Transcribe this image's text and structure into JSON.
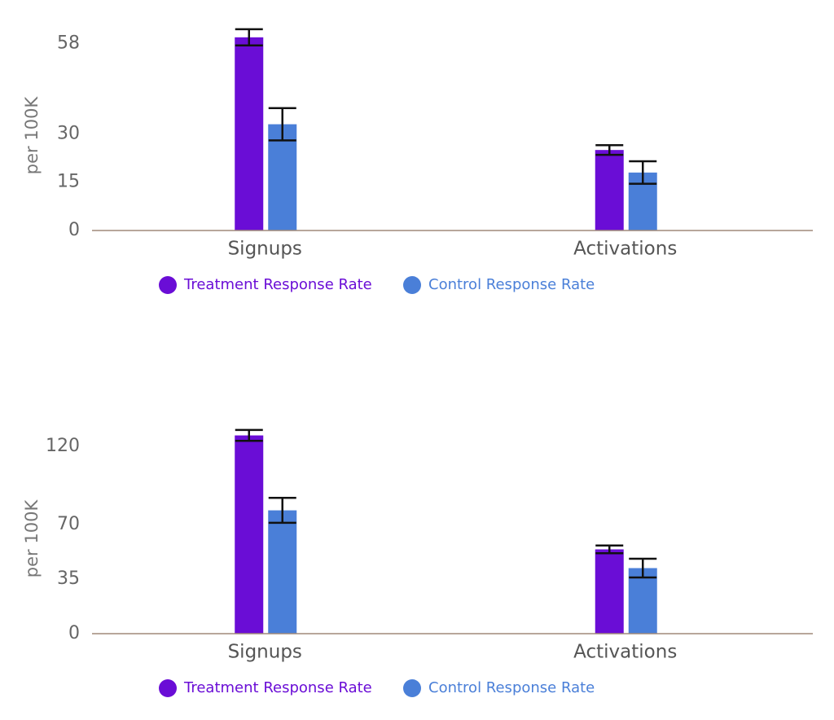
{
  "chart_data": [
    {
      "type": "bar",
      "y_label": "per 100K",
      "categories": [
        "Signups",
        "Activations"
      ],
      "series": [
        {
          "name": "Treatment Response Rate",
          "color": "#6a0dd6",
          "values": [
            60,
            25
          ],
          "errors": [
            2.5,
            1.5
          ]
        },
        {
          "name": "Control Response Rate",
          "color": "#4a7fd8",
          "values": [
            33,
            18
          ],
          "errors": [
            5,
            3.5
          ]
        }
      ],
      "ylim": [
        0,
        64
      ],
      "yticks": [
        0,
        15,
        30,
        58
      ]
    },
    {
      "type": "bar",
      "y_label": "per 100K",
      "categories": [
        "Signups",
        "Activations"
      ],
      "series": [
        {
          "name": "Treatment Response Rate",
          "color": "#6a0dd6",
          "values": [
            127,
            54
          ],
          "errors": [
            3.5,
            2.5
          ]
        },
        {
          "name": "Control Response Rate",
          "color": "#4a7fd8",
          "values": [
            79,
            42
          ],
          "errors": [
            8,
            6
          ]
        }
      ],
      "ylim": [
        0,
        132
      ],
      "yticks": [
        0,
        35,
        70,
        120
      ]
    }
  ]
}
